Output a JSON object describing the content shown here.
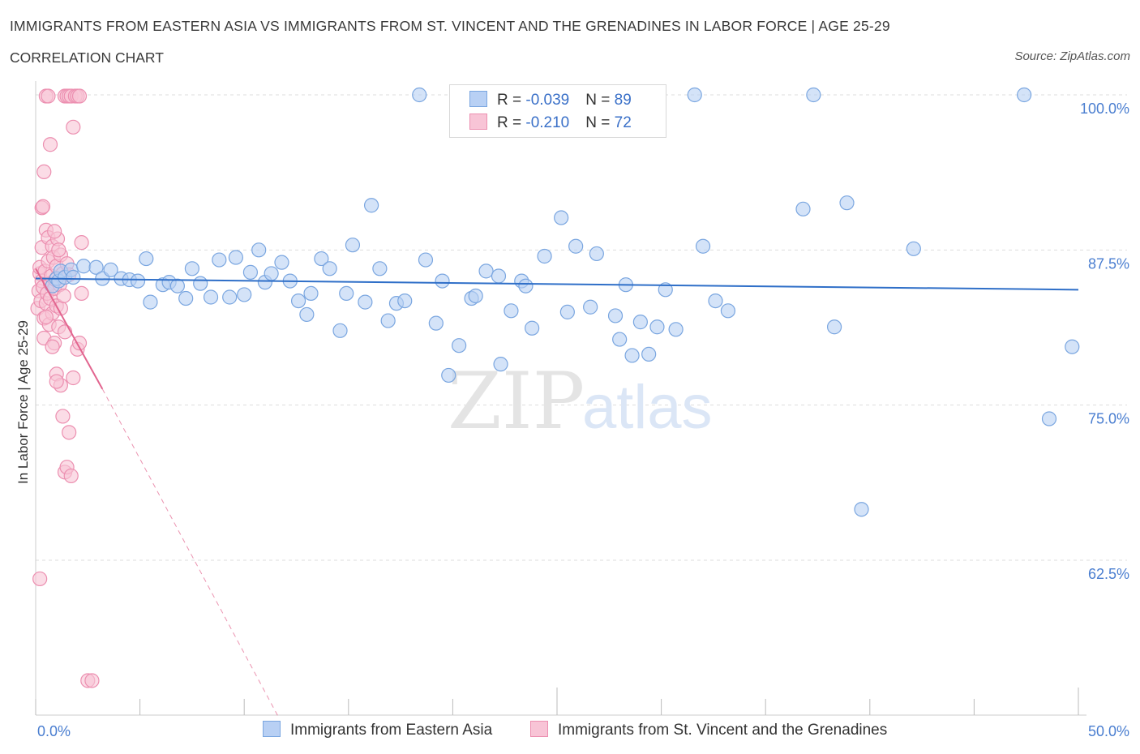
{
  "title": "IMMIGRANTS FROM EASTERN ASIA VS IMMIGRANTS FROM ST. VINCENT AND THE GRENADINES IN LABOR FORCE | AGE 25-29",
  "subtitle": "CORRELATION CHART",
  "source": "Source: ZipAtlas.com",
  "watermark": {
    "zip": "ZIP",
    "atlas": "atlas"
  },
  "legend": {
    "rows": [
      {
        "r_label": "R = ",
        "r_value": "-0.039",
        "n_label": "N = ",
        "n_value": "89"
      },
      {
        "r_label": "R = ",
        "r_value": " -0.210",
        "n_label": "N = ",
        "n_value": "72"
      }
    ]
  },
  "colors": {
    "blue_fill": "#b8d0f4",
    "blue_stroke": "#7aa6e0",
    "blue_line": "#2f6fc8",
    "pink_fill": "#f8c4d6",
    "pink_stroke": "#ec8fb0",
    "pink_line": "#e2658f",
    "tick_text": "#4a7ed0",
    "grid": "#dddddd"
  },
  "chart_data": {
    "type": "scatter",
    "title": "IMMIGRANTS FROM EASTERN ASIA VS IMMIGRANTS FROM ST. VINCENT AND THE GRENADINES IN LABOR FORCE | AGE 25-29",
    "ylabel": "In Labor Force | Age 25-29",
    "xlabel": "",
    "xlim": [
      0,
      50
    ],
    "ylim": [
      50,
      101.5
    ],
    "x_tick_labels": [
      "0.0%",
      "50.0%"
    ],
    "y_ticks": [
      100,
      87.5,
      75,
      62.5
    ],
    "y_tick_labels": [
      "100.0%",
      "87.5%",
      "75.0%",
      "62.5%"
    ],
    "grid": "horizontal dashed",
    "legend_position": "top-center",
    "series": [
      {
        "name": "Immigrants from Eastern Asia",
        "color": "blue",
        "R": -0.039,
        "N": 89,
        "trend": {
          "x": [
            0,
            50
          ],
          "y": [
            85.2,
            84.3
          ],
          "style": "solid"
        },
        "points": [
          [
            0.8,
            84.6
          ],
          [
            1.0,
            85.2
          ],
          [
            1.1,
            85.0
          ],
          [
            1.2,
            85.8
          ],
          [
            1.4,
            85.3
          ],
          [
            1.7,
            85.9
          ],
          [
            1.8,
            85.3
          ],
          [
            2.3,
            86.2
          ],
          [
            2.9,
            86.1
          ],
          [
            3.2,
            85.2
          ],
          [
            3.6,
            85.9
          ],
          [
            4.1,
            85.2
          ],
          [
            4.5,
            85.1
          ],
          [
            4.9,
            85.0
          ],
          [
            5.3,
            86.8
          ],
          [
            5.5,
            83.3
          ],
          [
            6.1,
            84.7
          ],
          [
            6.4,
            84.9
          ],
          [
            6.8,
            84.6
          ],
          [
            7.2,
            83.6
          ],
          [
            7.5,
            86.0
          ],
          [
            7.9,
            84.8
          ],
          [
            8.4,
            83.7
          ],
          [
            8.8,
            86.7
          ],
          [
            9.3,
            83.7
          ],
          [
            9.6,
            86.9
          ],
          [
            10.0,
            83.9
          ],
          [
            10.3,
            85.7
          ],
          [
            10.7,
            87.5
          ],
          [
            11.0,
            84.9
          ],
          [
            11.3,
            85.6
          ],
          [
            11.8,
            86.5
          ],
          [
            12.2,
            85.0
          ],
          [
            12.6,
            83.4
          ],
          [
            13.0,
            82.3
          ],
          [
            13.2,
            84.0
          ],
          [
            13.7,
            86.8
          ],
          [
            14.1,
            86.0
          ],
          [
            14.6,
            81.0
          ],
          [
            14.9,
            84.0
          ],
          [
            15.2,
            87.9
          ],
          [
            15.8,
            83.3
          ],
          [
            16.1,
            91.1
          ],
          [
            16.5,
            86.0
          ],
          [
            16.9,
            81.8
          ],
          [
            17.3,
            83.2
          ],
          [
            17.7,
            83.4
          ],
          [
            18.4,
            100.0
          ],
          [
            18.7,
            86.7
          ],
          [
            19.2,
            81.6
          ],
          [
            19.5,
            85.0
          ],
          [
            19.8,
            77.4
          ],
          [
            20.3,
            79.8
          ],
          [
            20.9,
            83.6
          ],
          [
            21.1,
            83.8
          ],
          [
            21.6,
            85.8
          ],
          [
            22.2,
            85.4
          ],
          [
            22.3,
            78.3
          ],
          [
            22.8,
            82.6
          ],
          [
            23.3,
            85.0
          ],
          [
            23.5,
            84.6
          ],
          [
            23.8,
            81.2
          ],
          [
            24.4,
            87.0
          ],
          [
            25.2,
            90.1
          ],
          [
            25.5,
            82.5
          ],
          [
            25.9,
            87.8
          ],
          [
            26.6,
            82.9
          ],
          [
            26.9,
            87.2
          ],
          [
            27.8,
            82.2
          ],
          [
            28.0,
            80.3
          ],
          [
            28.3,
            84.7
          ],
          [
            28.6,
            79.0
          ],
          [
            29.0,
            81.7
          ],
          [
            29.4,
            79.1
          ],
          [
            29.8,
            81.3
          ],
          [
            30.2,
            84.3
          ],
          [
            30.7,
            81.1
          ],
          [
            31.6,
            100.0
          ],
          [
            32.0,
            87.8
          ],
          [
            32.6,
            83.4
          ],
          [
            33.2,
            82.6
          ],
          [
            36.8,
            90.8
          ],
          [
            37.3,
            100.0
          ],
          [
            38.3,
            81.3
          ],
          [
            38.9,
            91.3
          ],
          [
            39.6,
            66.6
          ],
          [
            42.1,
            87.6
          ],
          [
            47.4,
            100.0
          ],
          [
            48.6,
            73.9
          ],
          [
            49.7,
            79.7
          ]
        ]
      },
      {
        "name": "Immigrants from St. Vincent and the Grenadines",
        "color": "pink",
        "R": -0.21,
        "N": 72,
        "trend": {
          "x": [
            0,
            3.2
          ],
          "y": [
            86.0,
            76.3
          ],
          "style": "solid",
          "extension": {
            "x": [
              3.2,
              11.6
            ],
            "y": [
              76.3,
              50.0
            ],
            "style": "dashed"
          }
        },
        "points": [
          [
            0.1,
            82.8
          ],
          [
            0.15,
            84.2
          ],
          [
            0.2,
            85.6
          ],
          [
            0.2,
            86.1
          ],
          [
            0.25,
            83.4
          ],
          [
            0.3,
            85.0
          ],
          [
            0.3,
            87.7
          ],
          [
            0.35,
            84.5
          ],
          [
            0.4,
            82.0
          ],
          [
            0.4,
            80.4
          ],
          [
            0.45,
            85.8
          ],
          [
            0.5,
            83.2
          ],
          [
            0.5,
            89.1
          ],
          [
            0.55,
            84.0
          ],
          [
            0.6,
            88.5
          ],
          [
            0.6,
            86.6
          ],
          [
            0.65,
            81.5
          ],
          [
            0.7,
            84.8
          ],
          [
            0.7,
            83.6
          ],
          [
            0.75,
            85.4
          ],
          [
            0.8,
            87.8
          ],
          [
            0.8,
            82.4
          ],
          [
            0.85,
            86.9
          ],
          [
            0.9,
            84.4
          ],
          [
            0.9,
            80.0
          ],
          [
            0.95,
            85.1
          ],
          [
            1.0,
            83.0
          ],
          [
            1.0,
            86.2
          ],
          [
            1.05,
            88.4
          ],
          [
            1.1,
            81.3
          ],
          [
            1.15,
            84.7
          ],
          [
            1.2,
            82.8
          ],
          [
            1.2,
            87.1
          ],
          [
            1.3,
            85.6
          ],
          [
            1.35,
            83.8
          ],
          [
            1.4,
            80.9
          ],
          [
            1.5,
            86.4
          ],
          [
            0.3,
            90.9
          ],
          [
            0.4,
            93.8
          ],
          [
            0.5,
            99.9
          ],
          [
            0.6,
            99.9
          ],
          [
            0.7,
            96.0
          ],
          [
            1.4,
            99.9
          ],
          [
            1.5,
            99.9
          ],
          [
            1.6,
            99.9
          ],
          [
            1.7,
            99.9
          ],
          [
            1.8,
            97.4
          ],
          [
            1.9,
            99.9
          ],
          [
            2.0,
            99.9
          ],
          [
            2.1,
            99.9
          ],
          [
            2.2,
            88.1
          ],
          [
            0.2,
            61.0
          ],
          [
            1.0,
            77.5
          ],
          [
            1.2,
            76.6
          ],
          [
            1.3,
            74.1
          ],
          [
            1.4,
            69.6
          ],
          [
            1.5,
            70.0
          ],
          [
            1.6,
            72.8
          ],
          [
            1.7,
            69.3
          ],
          [
            1.8,
            77.2
          ],
          [
            2.0,
            79.5
          ],
          [
            2.1,
            80.0
          ],
          [
            2.5,
            52.8
          ],
          [
            2.7,
            52.8
          ],
          [
            0.9,
            89.0
          ],
          [
            1.1,
            87.5
          ],
          [
            0.35,
            91.0
          ],
          [
            0.8,
            79.7
          ],
          [
            1.0,
            76.9
          ],
          [
            1.6,
            85.5
          ],
          [
            2.2,
            84.0
          ],
          [
            0.5,
            82.1
          ]
        ]
      }
    ]
  },
  "bottom_legend": [
    {
      "label": "Immigrants from Eastern Asia"
    },
    {
      "label": "Immigrants from St. Vincent and the Grenadines"
    }
  ]
}
